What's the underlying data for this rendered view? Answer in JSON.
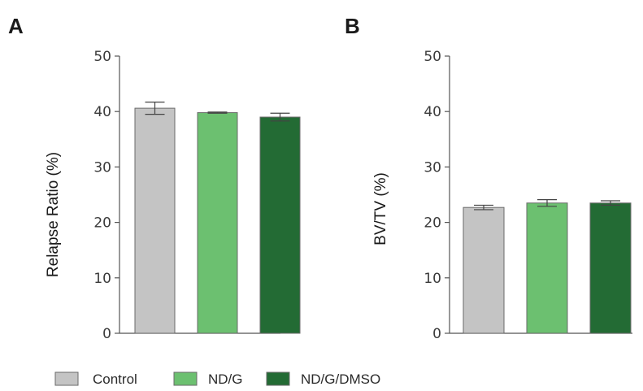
{
  "colors": {
    "Control": "#c4c4c4",
    "ND/G": "#6cc070",
    "ND/G/DMSO": "#236b34"
  },
  "legend": {
    "items": [
      {
        "label": "Control",
        "color": "#c4c4c4"
      },
      {
        "label": "ND/G",
        "color": "#6cc070"
      },
      {
        "label": "ND/G/DMSO",
        "color": "#236b34"
      }
    ],
    "placement": "bottom"
  },
  "chart_data": [
    {
      "panel": "A",
      "type": "bar",
      "categories": [
        "Control",
        "ND/G",
        "ND/G/DMSO"
      ],
      "values": [
        40.6,
        39.8,
        39.0
      ],
      "errors": [
        1.1,
        0.1,
        0.7
      ],
      "ylabel": "Relapse Ratio (%)",
      "xlabel": "",
      "ylim": [
        0,
        50
      ],
      "yticks": [
        0,
        10,
        20,
        30,
        40,
        50
      ],
      "grid": false
    },
    {
      "panel": "B",
      "type": "bar",
      "categories": [
        "Control",
        "ND/G",
        "ND/G/DMSO"
      ],
      "values": [
        22.7,
        23.5,
        23.5
      ],
      "errors": [
        0.4,
        0.6,
        0.4
      ],
      "ylabel": "BV/TV (%)",
      "xlabel": "",
      "ylim": [
        0,
        50
      ],
      "yticks": [
        0,
        10,
        20,
        30,
        40,
        50
      ],
      "grid": false
    }
  ]
}
